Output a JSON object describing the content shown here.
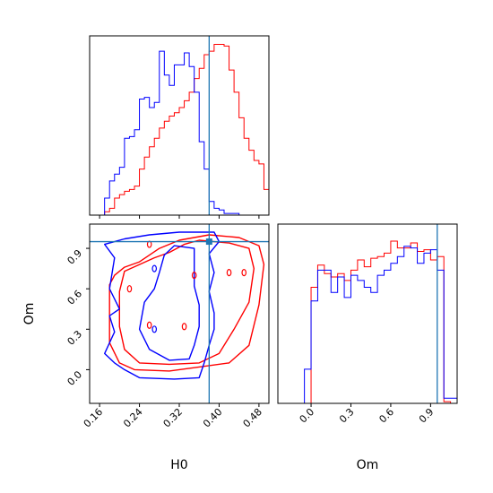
{
  "chart_data": [
    {
      "type": "histogram",
      "panel": "H0 marginal",
      "x": [
        0.14,
        0.15,
        0.16,
        0.17,
        0.18,
        0.19,
        0.2,
        0.21,
        0.22,
        0.23,
        0.24,
        0.25,
        0.26,
        0.27,
        0.28,
        0.29,
        0.3,
        0.31,
        0.32,
        0.33,
        0.34,
        0.35,
        0.36,
        0.37,
        0.38,
        0.39,
        0.4,
        0.41,
        0.42,
        0.43,
        0.44,
        0.45,
        0.46,
        0.47,
        0.48,
        0.49,
        0.5
      ],
      "xlim": [
        0.14,
        0.5
      ],
      "series": [
        {
          "color": "#ff0000",
          "values": [
            0,
            0,
            0,
            0.02,
            0.04,
            0.1,
            0.12,
            0.14,
            0.15,
            0.17,
            0.27,
            0.34,
            0.4,
            0.45,
            0.51,
            0.55,
            0.58,
            0.6,
            0.63,
            0.67,
            0.72,
            0.8,
            0.86,
            0.94,
            0.96,
            1.0,
            1.0,
            0.99,
            0.85,
            0.72,
            0.57,
            0.45,
            0.38,
            0.32,
            0.3,
            0.15
          ]
        },
        {
          "color": "#0000ff",
          "values": [
            0,
            0,
            0,
            0.1,
            0.2,
            0.24,
            0.28,
            0.45,
            0.46,
            0.5,
            0.68,
            0.69,
            0.63,
            0.66,
            0.96,
            0.82,
            0.76,
            0.88,
            0.88,
            0.95,
            0.87,
            0.72,
            0.43,
            0.27,
            0.08,
            0.04,
            0.03,
            0.01,
            0.01,
            0.01,
            0,
            0,
            0,
            0,
            0,
            0
          ]
        }
      ],
      "truth_line": 0.38,
      "line_color": "#1f77b4"
    },
    {
      "type": "contour",
      "panel": "H0 vs Om",
      "xlabel": "H0",
      "ylabel": "Om",
      "xlim": [
        0.14,
        0.5
      ],
      "ylim": [
        -0.25,
        1.08
      ],
      "x_ticks": [
        "0.16",
        "0.24",
        "0.32",
        "0.40",
        "0.48"
      ],
      "x_tick_values": [
        0.16,
        0.24,
        0.32,
        0.4,
        0.48
      ],
      "y_ticks": [
        "0.0",
        "0.3",
        "0.6",
        "0.9"
      ],
      "y_tick_values": [
        0.0,
        0.3,
        0.6,
        0.9
      ],
      "truth_point": [
        0.38,
        0.95
      ],
      "line_color": "#1f77b4",
      "contours": [
        {
          "color": "#ff0000",
          "points": [
            [
              0.18,
              0.63
            ],
            [
              0.18,
              0.2
            ],
            [
              0.2,
              0.05
            ],
            [
              0.23,
              0.0
            ],
            [
              0.3,
              -0.01
            ],
            [
              0.36,
              0.02
            ],
            [
              0.42,
              0.05
            ],
            [
              0.46,
              0.18
            ],
            [
              0.48,
              0.48
            ],
            [
              0.49,
              0.78
            ],
            [
              0.48,
              0.92
            ],
            [
              0.44,
              0.98
            ],
            [
              0.38,
              1.0
            ],
            [
              0.32,
              0.96
            ],
            [
              0.28,
              0.9
            ],
            [
              0.26,
              0.85
            ],
            [
              0.24,
              0.8
            ],
            [
              0.21,
              0.76
            ],
            [
              0.19,
              0.7
            ]
          ]
        },
        {
          "color": "#ff0000",
          "points": [
            [
              0.2,
              0.58
            ],
            [
              0.2,
              0.32
            ],
            [
              0.21,
              0.15
            ],
            [
              0.24,
              0.05
            ],
            [
              0.3,
              0.04
            ],
            [
              0.36,
              0.05
            ],
            [
              0.4,
              0.12
            ],
            [
              0.43,
              0.3
            ],
            [
              0.46,
              0.5
            ],
            [
              0.47,
              0.75
            ],
            [
              0.46,
              0.9
            ],
            [
              0.42,
              0.94
            ],
            [
              0.36,
              0.96
            ],
            [
              0.33,
              0.93
            ],
            [
              0.3,
              0.87
            ],
            [
              0.27,
              0.83
            ],
            [
              0.24,
              0.78
            ],
            [
              0.21,
              0.73
            ]
          ]
        },
        {
          "color": "#0000ff",
          "points": [
            [
              0.17,
              0.93
            ],
            [
              0.19,
              0.83
            ],
            [
              0.18,
              0.6
            ],
            [
              0.2,
              0.45
            ],
            [
              0.18,
              0.4
            ],
            [
              0.19,
              0.28
            ],
            [
              0.17,
              0.12
            ],
            [
              0.19,
              0.05
            ],
            [
              0.21,
              0.0
            ],
            [
              0.24,
              -0.06
            ],
            [
              0.31,
              -0.07
            ],
            [
              0.36,
              -0.06
            ],
            [
              0.37,
              0.05
            ],
            [
              0.38,
              0.18
            ],
            [
              0.39,
              0.3
            ],
            [
              0.39,
              0.42
            ],
            [
              0.38,
              0.58
            ],
            [
              0.39,
              0.72
            ],
            [
              0.38,
              0.86
            ],
            [
              0.4,
              0.95
            ],
            [
              0.39,
              1.02
            ],
            [
              0.32,
              1.02
            ],
            [
              0.26,
              1.0
            ],
            [
              0.21,
              0.97
            ]
          ]
        },
        {
          "color": "#0000ff",
          "points": [
            [
              0.25,
              0.5
            ],
            [
              0.24,
              0.3
            ],
            [
              0.26,
              0.15
            ],
            [
              0.3,
              0.07
            ],
            [
              0.34,
              0.08
            ],
            [
              0.35,
              0.18
            ],
            [
              0.36,
              0.32
            ],
            [
              0.36,
              0.48
            ],
            [
              0.35,
              0.62
            ],
            [
              0.35,
              0.77
            ],
            [
              0.35,
              0.9
            ],
            [
              0.31,
              0.92
            ],
            [
              0.29,
              0.85
            ],
            [
              0.28,
              0.72
            ],
            [
              0.27,
              0.6
            ]
          ]
        }
      ]
    },
    {
      "type": "histogram",
      "panel": "Om marginal",
      "xlabel": "Om",
      "x": [
        -0.25,
        -0.2,
        -0.15,
        -0.1,
        -0.05,
        0.0,
        0.05,
        0.1,
        0.15,
        0.2,
        0.25,
        0.3,
        0.35,
        0.4,
        0.45,
        0.5,
        0.55,
        0.6,
        0.65,
        0.7,
        0.75,
        0.8,
        0.85,
        0.9,
        0.95,
        1.0,
        1.05,
        1.1
      ],
      "xlim": [
        -0.25,
        1.1
      ],
      "x_ticks": [
        "0.0",
        "0.3",
        "0.6",
        "0.9"
      ],
      "x_tick_values": [
        0.0,
        0.3,
        0.6,
        0.9
      ],
      "series": [
        {
          "color": "#ff0000",
          "values": [
            0,
            0,
            0,
            0,
            0,
            0.68,
            0.81,
            0.76,
            0.74,
            0.76,
            0.72,
            0.78,
            0.84,
            0.8,
            0.85,
            0.86,
            0.88,
            0.95,
            0.91,
            0.91,
            0.94,
            0.89,
            0.9,
            0.84,
            0.86,
            0.01,
            0
          ]
        },
        {
          "color": "#0000ff",
          "values": [
            0,
            0,
            0,
            0,
            0.2,
            0.6,
            0.78,
            0.78,
            0.65,
            0.74,
            0.62,
            0.75,
            0.72,
            0.68,
            0.65,
            0.75,
            0.78,
            0.82,
            0.86,
            0.92,
            0.91,
            0.82,
            0.88,
            0.9,
            0.78,
            0.03,
            0.03
          ]
        }
      ],
      "truth_line": 0.95,
      "line_color": "#1f77b4"
    }
  ]
}
